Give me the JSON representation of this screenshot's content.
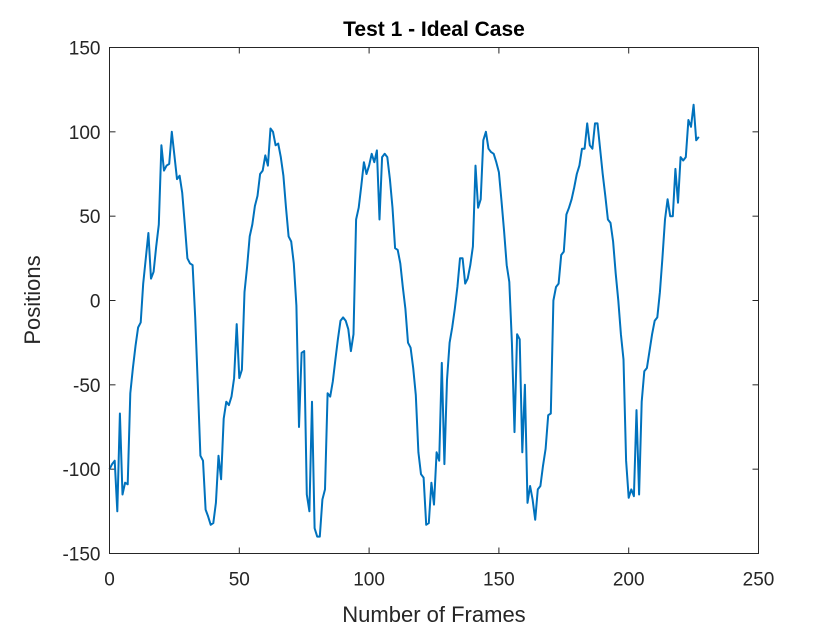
{
  "chart_data": {
    "type": "line",
    "title": "Test 1 - Ideal Case",
    "xlabel": "Number of Frames",
    "ylabel": "Positions",
    "xlim": [
      0,
      250
    ],
    "ylim": [
      -150,
      150
    ],
    "xticks": [
      "0",
      "50",
      "100",
      "150",
      "200",
      "250"
    ],
    "yticks": [
      "150",
      "100",
      "50",
      "0",
      "-50",
      "-100",
      "-150"
    ],
    "grid": false,
    "line_color": "#0072BD",
    "series": [
      {
        "x": [
          0,
          1,
          2,
          3,
          4,
          5,
          6,
          7,
          8,
          9,
          10,
          11,
          12,
          13,
          14,
          15,
          16,
          17,
          18,
          19,
          20,
          21,
          22,
          23,
          24,
          25,
          26,
          27,
          28,
          29,
          30,
          31,
          32,
          33,
          34,
          35,
          36,
          37,
          38,
          39,
          40,
          41,
          42,
          43,
          44,
          45,
          46,
          47,
          48,
          49,
          50,
          51,
          52,
          53,
          54,
          55,
          56,
          57,
          58,
          59,
          60,
          61,
          62,
          63,
          64,
          65,
          66,
          67,
          68,
          69,
          70,
          71,
          72,
          73,
          74,
          75,
          76,
          77,
          78,
          79,
          80,
          81,
          82,
          83,
          84,
          85,
          86,
          87,
          88,
          89,
          90,
          91,
          92,
          93,
          94,
          95,
          96,
          97,
          98,
          99,
          100,
          101,
          102,
          103,
          104,
          105,
          106,
          107,
          108,
          109,
          110,
          111,
          112,
          113,
          114,
          115,
          116,
          117,
          118,
          119,
          120,
          121,
          122,
          123,
          124,
          125,
          126,
          127,
          128,
          129,
          130,
          131,
          132,
          133,
          134,
          135,
          136,
          137,
          138,
          139,
          140,
          141,
          142,
          143,
          144,
          145,
          146,
          147,
          148,
          149,
          150,
          151,
          152,
          153,
          154,
          155,
          156,
          157,
          158,
          159,
          160,
          161,
          162,
          163,
          164,
          165,
          166,
          167,
          168,
          169,
          170,
          171,
          172,
          173,
          174,
          175,
          176,
          177,
          178,
          179,
          180,
          181,
          182,
          183,
          184,
          185,
          186,
          187,
          188,
          189,
          190,
          191,
          192,
          193,
          194,
          195,
          196,
          197,
          198,
          199,
          200,
          201,
          202,
          203,
          204,
          205,
          206,
          207,
          208,
          209,
          210,
          211,
          212,
          213,
          214,
          215,
          216,
          217,
          218,
          219,
          220,
          221,
          222,
          223,
          224,
          225,
          226,
          227
        ],
        "y": [
          -100,
          -97,
          -95,
          -125,
          -67,
          -115,
          -108,
          -109,
          -55,
          -40,
          -27,
          -16,
          -13,
          10,
          25,
          40,
          13,
          17,
          32,
          45,
          92,
          77,
          80,
          81,
          100,
          86,
          72,
          74,
          64,
          45,
          25,
          22,
          21,
          -10,
          -50,
          -92,
          -95,
          -124,
          -128,
          -133,
          -132,
          -120,
          -92,
          -106,
          -70,
          -60,
          -62,
          -57,
          -46,
          -14,
          -46,
          -41,
          5,
          20,
          38,
          45,
          56,
          62,
          75,
          77,
          86,
          80,
          102,
          100,
          92,
          93,
          85,
          74,
          55,
          38,
          35,
          22,
          -3,
          -75,
          -31,
          -30,
          -115,
          -125,
          -60,
          -135,
          -140,
          -140,
          -118,
          -112,
          -55,
          -57,
          -48,
          -35,
          -23,
          -12,
          -10,
          -12,
          -17,
          -30,
          -20,
          48,
          55,
          68,
          82,
          75,
          80,
          87,
          82,
          89,
          48,
          85,
          87,
          85,
          72,
          55,
          31,
          30,
          22,
          8,
          -5,
          -25,
          -28,
          -40,
          -56,
          -90,
          -103,
          -105,
          -133,
          -132,
          -108,
          -121,
          -90,
          -95,
          -37,
          -97,
          -47,
          -25,
          -16,
          -5,
          8,
          25,
          25,
          10,
          13,
          21,
          32,
          80,
          55,
          60,
          95,
          100,
          90,
          88,
          87,
          82,
          76,
          59,
          41,
          21,
          11,
          -25,
          -78,
          -20,
          -23,
          -90,
          -50,
          -120,
          -110,
          -118,
          -130,
          -112,
          -110,
          -98,
          -88,
          -68,
          -67,
          0,
          8,
          10,
          27,
          29,
          51,
          55,
          60,
          67,
          75,
          80,
          90,
          90,
          105,
          92,
          90,
          105,
          105,
          90,
          75,
          62,
          48,
          46,
          35,
          16,
          0,
          -20,
          -35,
          -95,
          -117,
          -112,
          -116,
          -65,
          -115,
          -60,
          -42,
          -40,
          -30,
          -20,
          -12,
          -10,
          5,
          25,
          48,
          60,
          50,
          50,
          78,
          58,
          85,
          83,
          85,
          107,
          103,
          116,
          95,
          97
        ]
      }
    ]
  }
}
